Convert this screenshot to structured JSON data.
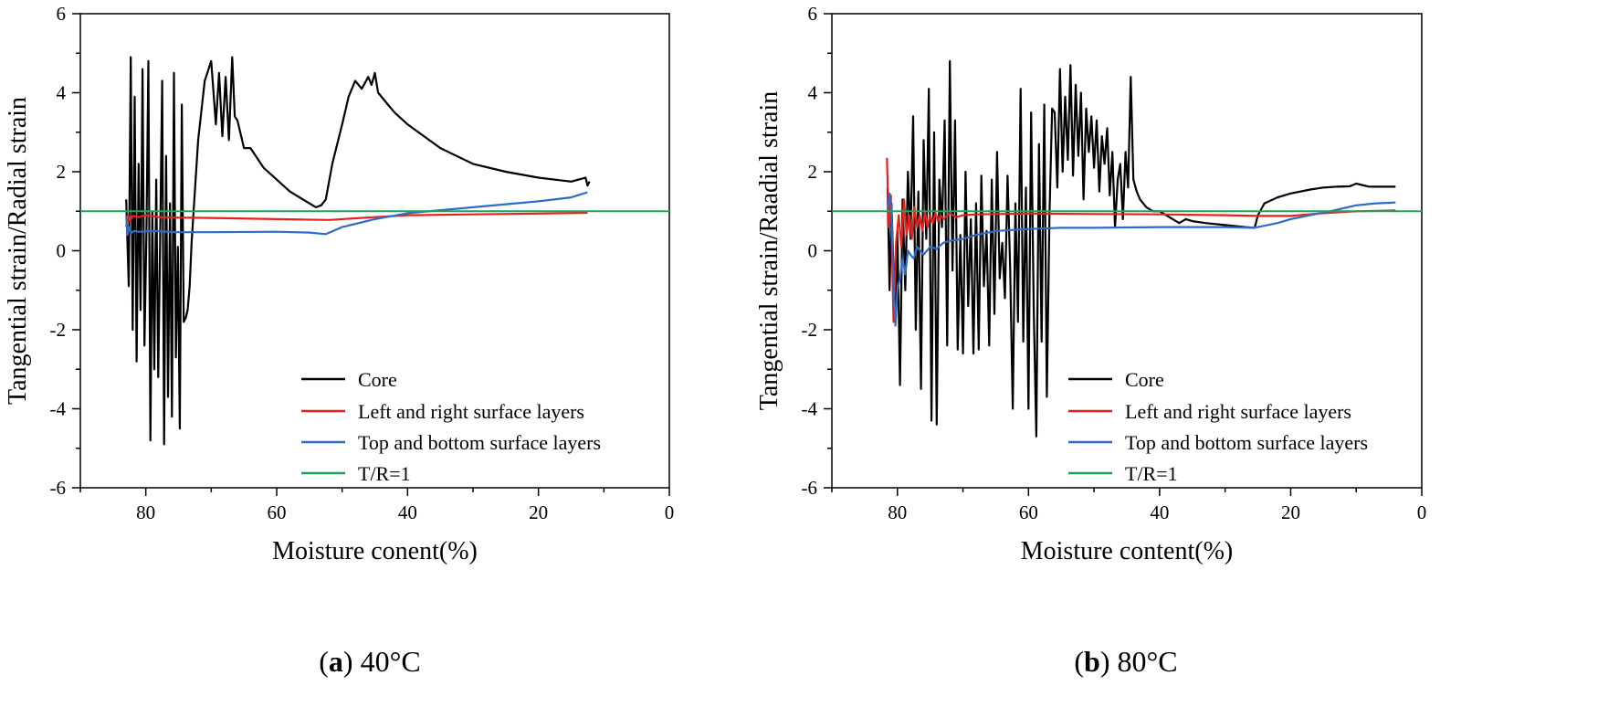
{
  "chart_data": [
    {
      "type": "line",
      "caption": {
        "label": "a",
        "condition": "40°C"
      },
      "xlabel": "Moisture conent(%)",
      "ylabel": "Tangential strain/Radial strain",
      "xlim": [
        90,
        0
      ],
      "ylim": [
        -6,
        6
      ],
      "xticks": [
        80,
        60,
        40,
        20,
        0
      ],
      "yticks": [
        6,
        4,
        2,
        0,
        -2,
        -4,
        -6
      ],
      "legend_position": "bottom-right",
      "series": [
        {
          "name": "Core",
          "color": "#000000",
          "x": [
            83,
            82.6,
            82.3,
            82.0,
            81.7,
            81.4,
            81.1,
            80.8,
            80.5,
            80.2,
            79.9,
            79.6,
            79.3,
            79.0,
            78.7,
            78.4,
            78.1,
            77.8,
            77.5,
            77.2,
            76.9,
            76.6,
            76.3,
            76.0,
            75.7,
            75.4,
            75.1,
            74.8,
            74.5,
            74.2,
            73.9,
            73.6,
            73.3,
            73.0,
            72.5,
            72.0,
            71.0,
            70.0,
            69.3,
            68.8,
            68.3,
            67.8,
            67.3,
            66.8,
            66.4,
            66.0,
            65.0,
            64.0,
            62.0,
            60.0,
            58.0,
            56.0,
            54.0,
            53.2,
            52.5,
            51.5,
            50.0,
            49.0,
            48.0,
            47.0,
            46.0,
            45.5,
            45.0,
            44.5,
            44.0,
            43.0,
            42.0,
            40.0,
            35.0,
            30.0,
            25.0,
            20.0,
            15.0,
            12.8,
            12.5,
            12.2
          ],
          "y": [
            1.3,
            -0.9,
            4.9,
            -2.0,
            3.9,
            -2.8,
            2.2,
            -1.5,
            4.6,
            -2.4,
            0.5,
            4.8,
            -4.8,
            1.0,
            -3.0,
            1.8,
            -3.2,
            0.3,
            4.3,
            -4.9,
            2.4,
            -3.7,
            1.2,
            -4.2,
            4.5,
            -2.7,
            0.1,
            -4.5,
            3.7,
            -1.8,
            -1.7,
            -1.5,
            -0.9,
            0.2,
            1.5,
            2.8,
            4.3,
            4.8,
            3.2,
            4.5,
            2.9,
            4.4,
            2.8,
            4.9,
            3.4,
            3.3,
            2.6,
            2.6,
            2.1,
            1.8,
            1.5,
            1.3,
            1.1,
            1.15,
            1.3,
            2.2,
            3.2,
            3.9,
            4.3,
            4.1,
            4.4,
            4.2,
            4.5,
            4.0,
            3.9,
            3.7,
            3.5,
            3.2,
            2.6,
            2.2,
            2.0,
            1.85,
            1.75,
            1.85,
            1.65,
            1.75
          ]
        },
        {
          "name": "Left and right surface layers",
          "color": "#e8211c",
          "x": [
            83,
            82.7,
            82.4,
            82.0,
            81.0,
            80.0,
            78.0,
            75.0,
            70.0,
            60.0,
            52.0,
            45.0,
            40.0,
            30.0,
            20.0,
            12.5
          ],
          "y": [
            0.6,
            0.9,
            0.75,
            0.88,
            0.85,
            0.9,
            0.85,
            0.84,
            0.83,
            0.8,
            0.78,
            0.85,
            0.9,
            0.92,
            0.94,
            0.96
          ]
        },
        {
          "name": "Top and bottom surface layers",
          "color": "#2e6cc9",
          "x": [
            83,
            82.8,
            82.5,
            82.2,
            81.8,
            81.0,
            79.0,
            75.0,
            70.0,
            60.0,
            55.0,
            52.5,
            50.0,
            45.0,
            40.0,
            30.0,
            20.0,
            15.0,
            12.5
          ],
          "y": [
            0.9,
            0.4,
            0.6,
            0.45,
            0.5,
            0.48,
            0.5,
            0.47,
            0.47,
            0.48,
            0.46,
            0.42,
            0.6,
            0.8,
            0.95,
            1.1,
            1.25,
            1.35,
            1.48
          ]
        },
        {
          "name": "T/R=1",
          "color": "#1aa55a",
          "x": [
            90,
            0
          ],
          "y": [
            1,
            1
          ]
        }
      ]
    },
    {
      "type": "line",
      "caption": {
        "label": "b",
        "condition": "80°C"
      },
      "xlabel": "Moisture content(%)",
      "ylabel": "Tangential strain/Raadial strain",
      "xlim": [
        90,
        0
      ],
      "ylim": [
        -6,
        6
      ],
      "xticks": [
        80,
        60,
        40,
        20,
        0
      ],
      "yticks": [
        6,
        4,
        2,
        0,
        -2,
        -4,
        -6
      ],
      "legend_position": "bottom-right",
      "series": [
        {
          "name": "Core",
          "color": "#000000",
          "x": [
            81.5,
            81.2,
            80.9,
            80.6,
            80.3,
            80.0,
            79.6,
            79.2,
            78.8,
            78.4,
            78.0,
            77.6,
            77.2,
            76.8,
            76.4,
            76.0,
            75.6,
            75.2,
            74.8,
            74.4,
            74.0,
            73.6,
            73.2,
            72.8,
            72.4,
            72.0,
            71.6,
            71.2,
            70.8,
            70.4,
            70.0,
            69.6,
            69.2,
            68.8,
            68.4,
            68.0,
            67.6,
            67.2,
            66.8,
            66.4,
            66.0,
            65.6,
            65.2,
            64.8,
            64.4,
            64.0,
            63.6,
            63.2,
            62.8,
            62.4,
            62.0,
            61.6,
            61.2,
            60.8,
            60.4,
            60.0,
            59.6,
            59.2,
            58.8,
            58.4,
            58.0,
            57.6,
            57.2,
            56.8,
            56.4,
            56.0,
            55.6,
            55.2,
            54.8,
            54.4,
            54.0,
            53.6,
            53.2,
            52.8,
            52.4,
            52.0,
            51.6,
            51.2,
            50.8,
            50.4,
            50.0,
            49.6,
            49.2,
            48.8,
            48.4,
            48.0,
            47.6,
            47.2,
            46.8,
            46.4,
            46.0,
            45.6,
            45.2,
            44.8,
            44.4,
            44.0,
            43.5,
            43.0,
            42.5,
            42.0,
            41.0,
            40.0,
            39.0,
            38.0,
            37.0,
            36.0,
            35.0,
            33.0,
            30.0,
            27.0,
            25.5,
            25.0,
            24.0,
            22.0,
            20.0,
            17.0,
            15.0,
            13.0,
            11.0,
            10.0,
            8.0,
            6.0,
            4.0
          ],
          "y": [
            1.6,
            -1.0,
            1.2,
            -0.5,
            -1.5,
            0.5,
            -3.4,
            1.3,
            -1.0,
            2.0,
            0.3,
            3.4,
            -2.0,
            1.5,
            -3.5,
            2.8,
            0.3,
            4.1,
            -4.3,
            3.0,
            -4.4,
            1.8,
            0.6,
            3.3,
            -2.4,
            4.8,
            -0.5,
            3.3,
            -2.5,
            0.4,
            -2.6,
            2.0,
            -1.4,
            0.8,
            -2.6,
            1.2,
            -2.5,
            1.9,
            -0.9,
            0.5,
            -2.4,
            1.8,
            -1.6,
            2.5,
            -0.7,
            0.2,
            -1.2,
            1.9,
            -0.4,
            -4.0,
            1.2,
            -1.8,
            4.1,
            -2.3,
            1.6,
            -4.0,
            3.5,
            -1.5,
            -4.7,
            2.7,
            -2.3,
            3.7,
            -3.7,
            0.9,
            3.6,
            3.5,
            1.6,
            4.6,
            2.0,
            3.9,
            2.3,
            4.7,
            1.9,
            4.2,
            2.4,
            4.0,
            1.3,
            3.6,
            2.5,
            3.4,
            2.1,
            3.3,
            1.5,
            2.9,
            2.2,
            3.1,
            1.4,
            2.5,
            0.6,
            1.8,
            2.2,
            0.8,
            2.5,
            1.6,
            4.4,
            1.8,
            1.5,
            1.3,
            1.2,
            1.1,
            1.0,
            1.0,
            0.9,
            0.8,
            0.7,
            0.8,
            0.75,
            0.7,
            0.65,
            0.6,
            0.58,
            0.9,
            1.2,
            1.35,
            1.45,
            1.55,
            1.6,
            1.62,
            1.63,
            1.7,
            1.62,
            1.62,
            1.62
          ]
        },
        {
          "name": "Left and right surface layers",
          "color": "#e8211c",
          "x": [
            81.6,
            81.3,
            81.0,
            80.6,
            80.2,
            79.8,
            79.4,
            79.0,
            78.6,
            78.2,
            77.8,
            77.4,
            77.0,
            76.6,
            76.2,
            75.8,
            75.4,
            75.0,
            74.6,
            74.2,
            73.8,
            73.4,
            73.0,
            72.0,
            71.0,
            70.0,
            68.0,
            65.0,
            60.0,
            50.0,
            40.0,
            30.0,
            25.0,
            20.0,
            15.0,
            10.0,
            4.0
          ],
          "y": [
            2.35,
            0.6,
            1.4,
            -1.8,
            0.2,
            0.9,
            0.1,
            1.3,
            0.4,
            0.9,
            0.3,
            1.1,
            0.6,
            0.9,
            0.5,
            1.0,
            0.6,
            0.9,
            0.7,
            0.95,
            0.75,
            0.9,
            0.8,
            0.95,
            0.85,
            0.9,
            0.92,
            0.93,
            0.94,
            0.93,
            0.92,
            0.9,
            0.88,
            0.88,
            0.95,
            1.0,
            1.02
          ]
        },
        {
          "name": "Top and bottom surface layers",
          "color": "#2e6cc9",
          "x": [
            81.5,
            81.2,
            80.9,
            80.6,
            80.3,
            80.0,
            79.6,
            79.2,
            78.8,
            78.4,
            78.0,
            77.5,
            77.0,
            76.0,
            75.0,
            74.0,
            73.0,
            72.0,
            70.0,
            68.0,
            65.0,
            60.0,
            55.0,
            50.0,
            45.0,
            40.0,
            35.0,
            30.0,
            26.0,
            25.0,
            22.0,
            20.0,
            17.0,
            14.0,
            10.0,
            7.0,
            4.0
          ],
          "y": [
            1.0,
            1.45,
            1.1,
            -0.8,
            -1.9,
            -1.0,
            -0.7,
            -0.2,
            -0.6,
            0.0,
            -0.1,
            -0.2,
            0.1,
            -0.1,
            0.1,
            0.05,
            0.2,
            0.25,
            0.3,
            0.4,
            0.5,
            0.55,
            0.58,
            0.58,
            0.59,
            0.6,
            0.6,
            0.6,
            0.58,
            0.6,
            0.7,
            0.8,
            0.9,
            1.0,
            1.15,
            1.2,
            1.22
          ]
        },
        {
          "name": "T/R=1",
          "color": "#1aa55a",
          "x": [
            90,
            0
          ],
          "y": [
            1,
            1
          ]
        }
      ]
    }
  ]
}
